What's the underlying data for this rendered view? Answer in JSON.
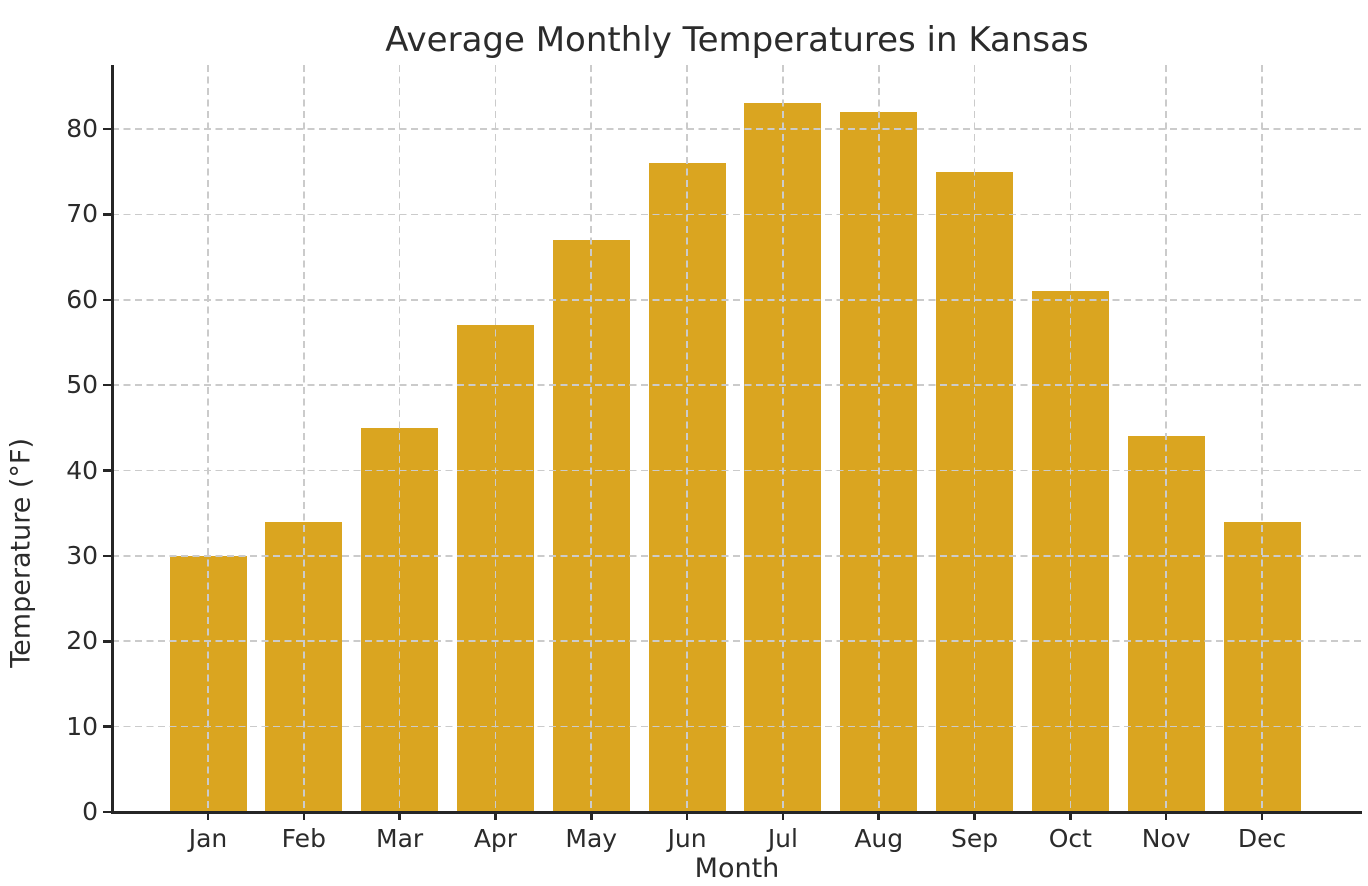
{
  "chart_data": {
    "type": "bar",
    "title": "Average Monthly Temperatures in Kansas",
    "xlabel": "Month",
    "ylabel": "Temperature (°F)",
    "categories": [
      "Jan",
      "Feb",
      "Mar",
      "Apr",
      "May",
      "Jun",
      "Jul",
      "Aug",
      "Sep",
      "Oct",
      "Nov",
      "Dec"
    ],
    "values": [
      30,
      34,
      45,
      57,
      67,
      76,
      83,
      82,
      75,
      61,
      44,
      34
    ],
    "yticks": [
      0,
      10,
      20,
      30,
      40,
      50,
      60,
      70,
      80
    ],
    "ylim": [
      0,
      87.5
    ],
    "grid": "dashed, both axes, drawn above bars",
    "legend": "none",
    "bar_color": "#DAA520",
    "grid_color": "#CBCBCB",
    "axis_color": "#262626",
    "text_color": "#2B2B2B",
    "background_color": "#FFFFFF"
  }
}
